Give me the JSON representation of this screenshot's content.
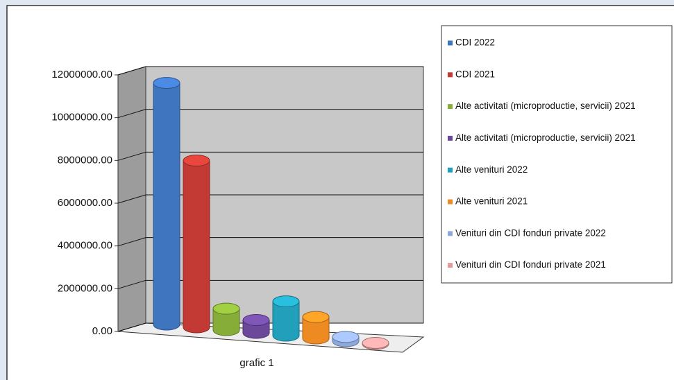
{
  "chart_data": {
    "type": "bar3d",
    "categories": [
      "grafic 1"
    ],
    "series": [
      {
        "name": "CDI 2022",
        "color": "#3f74bf",
        "values": [
          11300000
        ]
      },
      {
        "name": "CDI 2021",
        "color": "#c23a33",
        "values": [
          7800000
        ]
      },
      {
        "name": "Alte activitati (microproductie, servicii)  2021",
        "color": "#86ad37",
        "values": [
          1000000
        ]
      },
      {
        "name": "Alte activitati (microproductie, servicii)  2021",
        "color": "#6b4899",
        "values": [
          600000
        ]
      },
      {
        "name": "Alte venituri  2022",
        "color": "#22a0bb",
        "values": [
          1600000
        ]
      },
      {
        "name": "Alte venituri  2021",
        "color": "#ee8a22",
        "values": [
          1000000
        ]
      },
      {
        "name": "Venituri din CDI fonduri private 2022",
        "color": "#8fa8dc",
        "values": [
          200000
        ]
      },
      {
        "name": "Venituri din CDI fonduri private 2021",
        "color": "#e39a9a",
        "values": [
          50000
        ]
      }
    ],
    "ylim": [
      0,
      12000000
    ],
    "yticks": [
      {
        "value": 0,
        "label": "0.00"
      },
      {
        "value": 2000000,
        "label": "2000000.00"
      },
      {
        "value": 4000000,
        "label": "4000000.00"
      },
      {
        "value": 6000000,
        "label": "6000000.00"
      },
      {
        "value": 8000000,
        "label": "8000000.00"
      },
      {
        "value": 10000000,
        "label": "10000000.00"
      },
      {
        "value": 12000000,
        "label": "12000000.00"
      }
    ],
    "grid": true,
    "legend": "right"
  }
}
